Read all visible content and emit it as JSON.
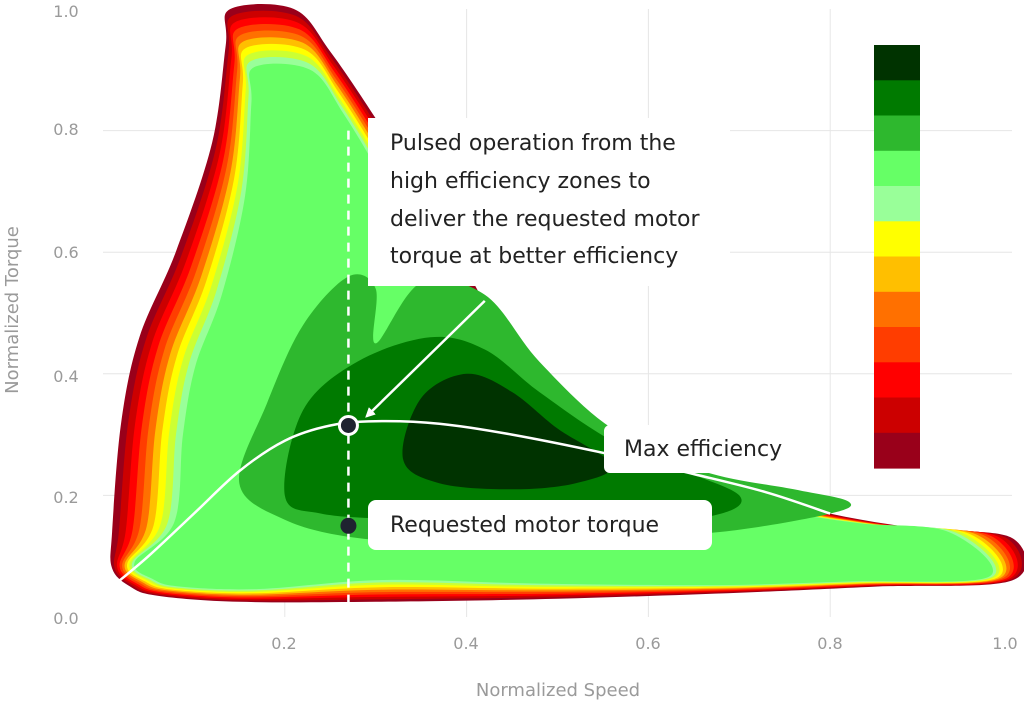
{
  "chart_data": {
    "type": "contour",
    "title": "",
    "xlabel": "Normalized Speed",
    "ylabel": "Normalized Torque",
    "xlim": [
      0.0,
      1.0
    ],
    "ylim": [
      0.0,
      1.0
    ],
    "x_ticks": [
      "0.2",
      "0.4",
      "0.6",
      "0.8",
      "1.0"
    ],
    "y_ticks": [
      "0.0",
      "0.2",
      "0.4",
      "0.6",
      "0.8",
      "1.0"
    ],
    "grid": true,
    "legend": "colorbar at top-right, no labels",
    "colorbar_colors": [
      "#003300",
      "#007a00",
      "#2eb82e",
      "#66ff66",
      "#99ff99",
      "#ffff00",
      "#ffbf00",
      "#ff7000",
      "#ff3d00",
      "#ff0000",
      "#cc0000",
      "#99001a"
    ],
    "envelope": {
      "upper": [
        [
          0.01,
          0.14
        ],
        [
          0.02,
          0.32
        ],
        [
          0.04,
          0.46
        ],
        [
          0.08,
          0.6
        ],
        [
          0.12,
          0.78
        ],
        [
          0.135,
          0.94
        ],
        [
          0.14,
          1.0
        ],
        [
          0.21,
          1.0
        ],
        [
          0.25,
          0.93
        ],
        [
          0.3,
          0.82
        ],
        [
          0.35,
          0.7
        ],
        [
          0.4,
          0.57
        ],
        [
          0.45,
          0.44
        ],
        [
          0.5,
          0.36
        ],
        [
          0.6,
          0.27
        ],
        [
          0.7,
          0.21
        ],
        [
          0.8,
          0.17
        ],
        [
          0.9,
          0.145
        ],
        [
          1.0,
          0.13
        ]
      ],
      "lower": [
        [
          1.0,
          0.06
        ],
        [
          0.85,
          0.05
        ],
        [
          0.7,
          0.04
        ],
        [
          0.5,
          0.03
        ],
        [
          0.3,
          0.025
        ],
        [
          0.15,
          0.025
        ],
        [
          0.06,
          0.035
        ],
        [
          0.03,
          0.05
        ],
        [
          0.01,
          0.08
        ]
      ]
    },
    "contour_layers": [
      {
        "color": "#99001a",
        "inset": 0
      },
      {
        "color": "#cc0000",
        "inset": 1
      },
      {
        "color": "#ff0000",
        "inset": 2
      },
      {
        "color": "#ff3d00",
        "inset": 3
      },
      {
        "color": "#ff7000",
        "inset": 4
      },
      {
        "color": "#ffbf00",
        "inset": 5
      },
      {
        "color": "#ffff00",
        "inset": 6
      },
      {
        "color": "#ccff33",
        "inset": 7
      },
      {
        "color": "#99ff99",
        "inset": 8
      },
      {
        "color": "#66ff66",
        "inset": 9
      }
    ],
    "inner_regions": [
      {
        "color": "#2eb82e",
        "points": [
          [
            0.15,
            0.22
          ],
          [
            0.18,
            0.35
          ],
          [
            0.22,
            0.48
          ],
          [
            0.27,
            0.56
          ],
          [
            0.3,
            0.54
          ],
          [
            0.3,
            0.45
          ],
          [
            0.35,
            0.55
          ],
          [
            0.42,
            0.53
          ],
          [
            0.48,
            0.42
          ],
          [
            0.56,
            0.31
          ],
          [
            0.66,
            0.24
          ],
          [
            0.76,
            0.21
          ],
          [
            0.82,
            0.19
          ],
          [
            0.8,
            0.17
          ],
          [
            0.68,
            0.14
          ],
          [
            0.55,
            0.13
          ],
          [
            0.4,
            0.12
          ],
          [
            0.28,
            0.13
          ],
          [
            0.2,
            0.16
          ]
        ]
      },
      {
        "color": "#007a00",
        "points": [
          [
            0.2,
            0.2
          ],
          [
            0.22,
            0.34
          ],
          [
            0.28,
            0.42
          ],
          [
            0.36,
            0.46
          ],
          [
            0.42,
            0.44
          ],
          [
            0.48,
            0.37
          ],
          [
            0.56,
            0.29
          ],
          [
            0.64,
            0.24
          ],
          [
            0.7,
            0.2
          ],
          [
            0.68,
            0.17
          ],
          [
            0.58,
            0.15
          ],
          [
            0.45,
            0.15
          ],
          [
            0.33,
            0.16
          ],
          [
            0.24,
            0.17
          ]
        ]
      },
      {
        "color": "#003300",
        "points": [
          [
            0.33,
            0.26
          ],
          [
            0.35,
            0.36
          ],
          [
            0.4,
            0.4
          ],
          [
            0.45,
            0.37
          ],
          [
            0.5,
            0.31
          ],
          [
            0.56,
            0.25
          ],
          [
            0.52,
            0.22
          ],
          [
            0.45,
            0.21
          ],
          [
            0.37,
            0.22
          ]
        ]
      }
    ],
    "max_efficiency_curve": [
      [
        0.01,
        0.05
      ],
      [
        0.05,
        0.1
      ],
      [
        0.1,
        0.17
      ],
      [
        0.15,
        0.24
      ],
      [
        0.2,
        0.29
      ],
      [
        0.25,
        0.315
      ],
      [
        0.3,
        0.322
      ],
      [
        0.37,
        0.318
      ],
      [
        0.45,
        0.3
      ],
      [
        0.55,
        0.27
      ],
      [
        0.65,
        0.235
      ],
      [
        0.73,
        0.205
      ],
      [
        0.8,
        0.17
      ]
    ],
    "requested_speed": 0.27,
    "points": [
      {
        "name": "pulsed-operating-point",
        "x": 0.27,
        "y": 0.315
      },
      {
        "name": "requested-torque-point",
        "x": 0.27,
        "y": 0.15
      }
    ],
    "arrow": {
      "from": [
        0.42,
        0.52
      ],
      "to": [
        0.29,
        0.33
      ]
    },
    "annotations": {
      "pulsed_lines": [
        "Pulsed operation from the",
        "high efficiency zones to",
        "deliver the requested motor",
        "torque at better efficiency"
      ],
      "max_efficiency": "Max efficiency",
      "requested_torque": "Requested motor torque"
    }
  }
}
